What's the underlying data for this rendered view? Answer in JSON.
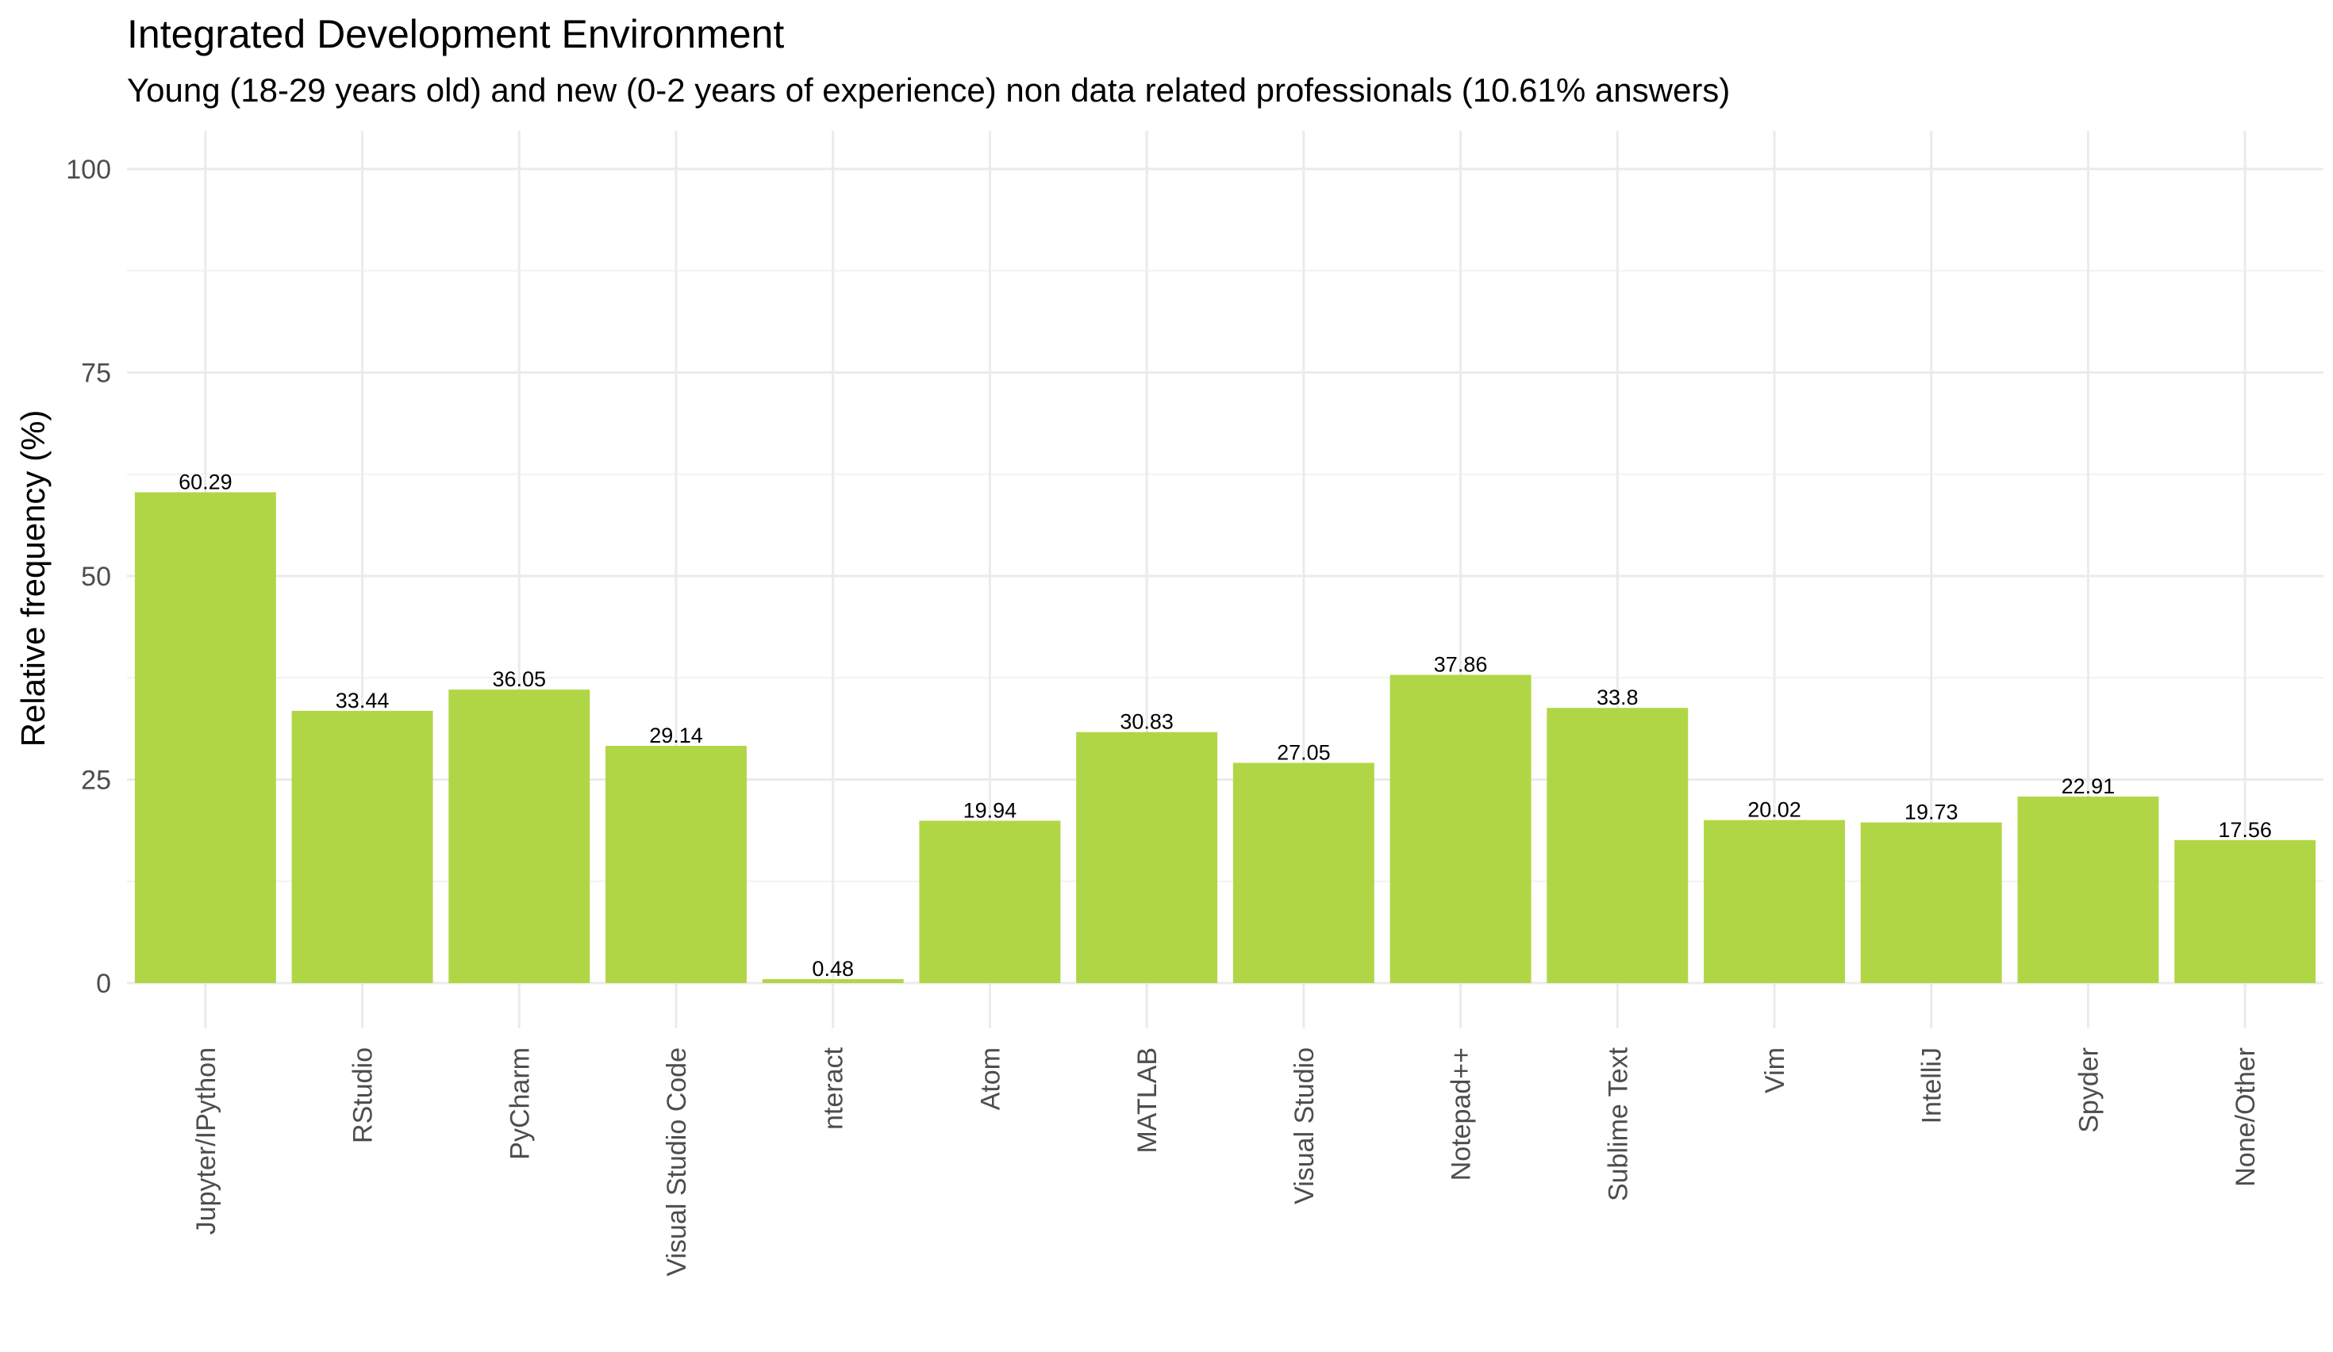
{
  "chart_data": {
    "type": "bar",
    "title": "Integrated Development Environment",
    "subtitle": "Young (18-29 years old) and new (0-2 years of experience) non data related professionals (10.61% answers)",
    "xlabel": "",
    "ylabel": "Relative frequency (%)",
    "ylim": [
      0,
      100
    ],
    "yticks": [
      0,
      25,
      50,
      75,
      100
    ],
    "grid": true,
    "bar_color": "#b0d646",
    "categories": [
      "Jupyter/IPython",
      "RStudio",
      "PyCharm",
      "Visual Studio Code",
      "nteract",
      "Atom",
      "MATLAB",
      "Visual Studio",
      "Notepad++",
      "Sublime Text",
      "Vim",
      "IntelliJ",
      "Spyder",
      "None/Other"
    ],
    "values": [
      60.29,
      33.44,
      36.05,
      29.14,
      0.48,
      19.94,
      30.83,
      27.05,
      37.86,
      33.8,
      20.02,
      19.73,
      22.91,
      17.56
    ],
    "value_labels": [
      "60.29",
      "33.44",
      "36.05",
      "29.14",
      "0.48",
      "19.94",
      "30.83",
      "27.05",
      "37.86",
      "33.8",
      "20.02",
      "19.73",
      "22.91",
      "17.56"
    ]
  }
}
